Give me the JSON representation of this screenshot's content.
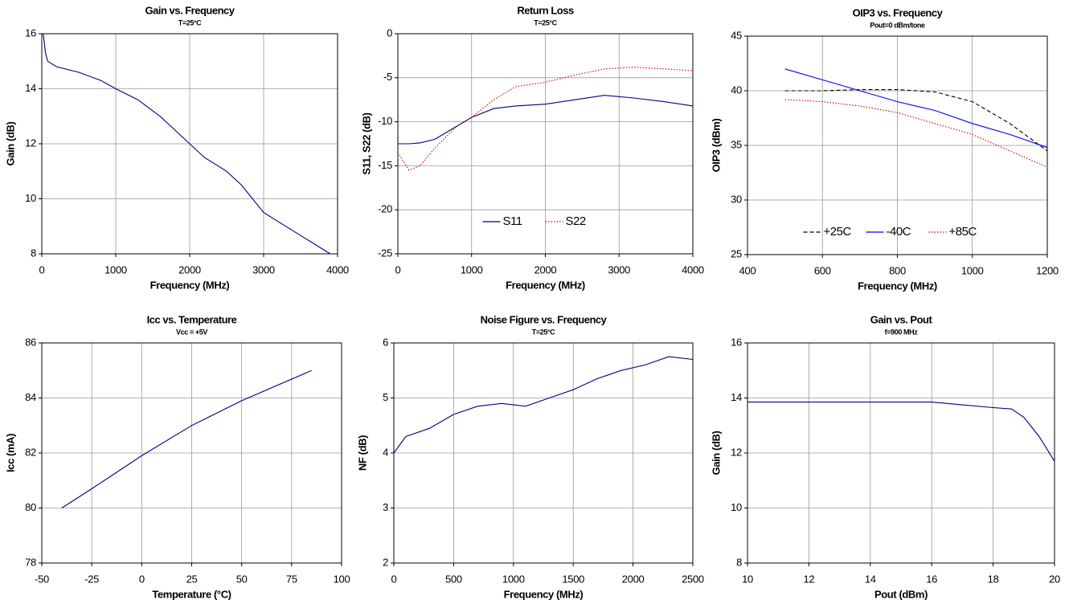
{
  "chart_data": [
    {
      "type": "line",
      "title": "Gain vs. Frequency",
      "subtitle": "T=25°C",
      "xlabel": "Frequency (MHz)",
      "ylabel": "Gain (dB)",
      "x": [
        20,
        50,
        80,
        200,
        500,
        800,
        1000,
        1300,
        1600,
        1800,
        2000,
        2200,
        2500,
        2700,
        2850,
        3000,
        3300,
        3600,
        3900
      ],
      "series": [
        {
          "color": "#000080",
          "style": "solid",
          "values": [
            16,
            15.3,
            15,
            14.8,
            14.6,
            14.3,
            14,
            13.6,
            13,
            12.5,
            12,
            11.5,
            11,
            10.5,
            10,
            9.5,
            9,
            8.5,
            8
          ]
        }
      ],
      "xlim": [
        0,
        4000
      ],
      "xticks": [
        0,
        1000,
        2000,
        3000,
        4000
      ],
      "ylim": [
        8,
        16
      ],
      "yticks": [
        8,
        10,
        12,
        14,
        16
      ],
      "grid": true
    },
    {
      "type": "line",
      "title": "Return Loss",
      "subtitle": "T=25°C",
      "xlabel": "Frequency (MHz)",
      "ylabel": "S11, S22 (dB)",
      "x": [
        0,
        150,
        300,
        500,
        800,
        1000,
        1300,
        1600,
        2000,
        2400,
        2800,
        3200,
        3600,
        4000
      ],
      "series": [
        {
          "name": "S11",
          "color": "#000080",
          "style": "solid",
          "values": [
            -12.5,
            -12.5,
            -12.4,
            -12,
            -10.5,
            -9.5,
            -8.5,
            -8.2,
            -8,
            -7.5,
            -7,
            -7.3,
            -7.7,
            -8.2
          ]
        },
        {
          "name": "S22",
          "color": "#cc0000",
          "style": "dotted",
          "values": [
            -13.5,
            -15.5,
            -15,
            -13,
            -10.5,
            -9.5,
            -7.5,
            -6,
            -5.5,
            -4.7,
            -4,
            -3.8,
            -4,
            -4.2
          ]
        }
      ],
      "xlim": [
        0,
        4000
      ],
      "xticks": [
        0,
        1000,
        2000,
        3000,
        4000
      ],
      "ylim": [
        -25,
        0
      ],
      "yticks": [
        -25,
        -20,
        -15,
        -10,
        -5,
        0
      ],
      "grid": true,
      "legend": "bottom"
    },
    {
      "type": "line",
      "title": "OIP3 vs. Frequency",
      "subtitle": "Pout=0 dBm/tone",
      "xlabel": "Frequency (MHz)",
      "ylabel": "OIP3 (dBm)",
      "x": [
        500,
        600,
        700,
        800,
        900,
        1000,
        1100,
        1200
      ],
      "series": [
        {
          "name": "+25C",
          "color": "#000000",
          "style": "dashed",
          "values": [
            40,
            40,
            40.1,
            40.1,
            39.9,
            39,
            37,
            34.5
          ]
        },
        {
          "name": "-40C",
          "color": "#0000ff",
          "style": "solid",
          "values": [
            42,
            41,
            40,
            39,
            38.2,
            37,
            36,
            34.8
          ]
        },
        {
          "name": "+85C",
          "color": "#cc0000",
          "style": "dotted",
          "values": [
            39.2,
            39,
            38.6,
            38,
            37,
            36,
            34.5,
            33
          ]
        }
      ],
      "xlim": [
        400,
        1200
      ],
      "xticks": [
        400,
        600,
        800,
        1000,
        1200
      ],
      "ylim": [
        25,
        45
      ],
      "yticks": [
        25,
        30,
        35,
        40,
        45
      ],
      "grid": true,
      "legend": "bottom"
    },
    {
      "type": "line",
      "title": "Icc vs. Temperature",
      "subtitle": "Vcc = +5V",
      "xlabel": "Temperature (°C)",
      "ylabel": "Icc (mA)",
      "x": [
        -40,
        -25,
        0,
        25,
        50,
        85
      ],
      "series": [
        {
          "color": "#000080",
          "style": "solid",
          "values": [
            80,
            80.7,
            81.9,
            83,
            83.9,
            85
          ]
        }
      ],
      "xlim": [
        -50,
        100
      ],
      "xticks": [
        -50,
        -25,
        0,
        25,
        50,
        75,
        100
      ],
      "ylim": [
        78,
        86
      ],
      "yticks": [
        78,
        80,
        82,
        84,
        86
      ],
      "grid": true
    },
    {
      "type": "line",
      "title": "Noise Figure vs. Frequency",
      "subtitle": "T=25°C",
      "xlabel": "Frequency (MHz)",
      "ylabel": "NF (dB)",
      "x": [
        0,
        100,
        300,
        500,
        700,
        900,
        1100,
        1300,
        1500,
        1700,
        1900,
        2100,
        2300,
        2500
      ],
      "series": [
        {
          "color": "#000080",
          "style": "solid",
          "values": [
            4,
            4.3,
            4.45,
            4.7,
            4.85,
            4.9,
            4.85,
            5,
            5.15,
            5.35,
            5.5,
            5.6,
            5.75,
            5.7
          ]
        }
      ],
      "xlim": [
        0,
        2500
      ],
      "xticks": [
        0,
        500,
        1000,
        1500,
        2000,
        2500
      ],
      "ylim": [
        2,
        6
      ],
      "yticks": [
        2,
        3,
        4,
        5,
        6
      ],
      "grid": true
    },
    {
      "type": "line",
      "title": "Gain vs. Pout",
      "subtitle": "f=900 MHz",
      "xlabel": "Pout (dBm)",
      "ylabel": "Gain (dB)",
      "x": [
        10,
        14,
        16,
        17,
        18,
        18.6,
        19,
        19.5,
        20
      ],
      "series": [
        {
          "color": "#000080",
          "style": "solid",
          "values": [
            13.85,
            13.85,
            13.85,
            13.75,
            13.65,
            13.6,
            13.3,
            12.6,
            11.7
          ]
        }
      ],
      "xlim": [
        10,
        20
      ],
      "xticks": [
        10,
        12,
        14,
        16,
        18,
        20
      ],
      "ylim": [
        8,
        16
      ],
      "yticks": [
        8,
        10,
        12,
        14,
        16
      ],
      "grid": true
    }
  ]
}
